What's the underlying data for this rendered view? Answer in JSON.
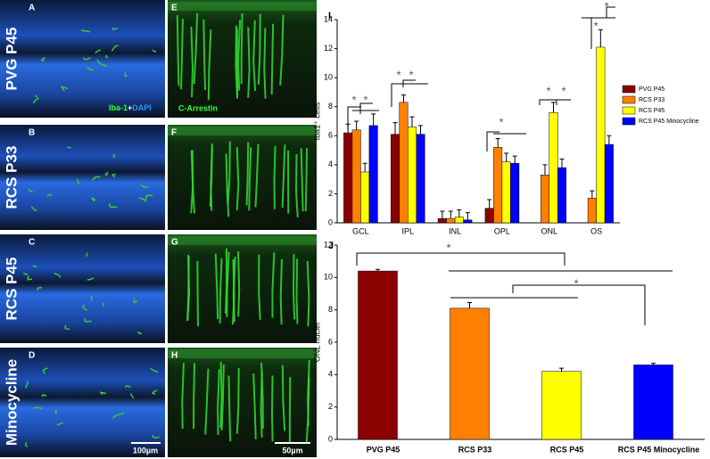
{
  "panels": {
    "rows": [
      "PVG P45",
      "RCS P33",
      "RCS P45",
      "Minocycline"
    ],
    "letters": [
      "A",
      "B",
      "C",
      "D",
      "E",
      "F",
      "G",
      "H"
    ],
    "stain_left": [
      "Iba-1",
      "+",
      "DAPI"
    ],
    "stain_right": "C-Arrestin",
    "scale_left": "100µm",
    "scale_right": "50µm"
  },
  "chart_data": [
    {
      "type": "bar",
      "panel": "I",
      "ylabel": "Iba1⁺ cells",
      "categories": [
        "GCL",
        "IPL",
        "INL",
        "OPL",
        "ONL",
        "OS"
      ],
      "series": [
        {
          "name": "PVG P45",
          "color": "#8b0000",
          "values": [
            6.2,
            6.1,
            0.3,
            1.0,
            0,
            0
          ],
          "errors": [
            0.6,
            0.8,
            0.5,
            0.6,
            0,
            0
          ]
        },
        {
          "name": "RCS P33",
          "color": "#ff7f00",
          "values": [
            6.4,
            8.3,
            0.3,
            5.2,
            3.3,
            1.7
          ],
          "errors": [
            0.6,
            0.5,
            0.5,
            0.6,
            0.7,
            0.5
          ]
        },
        {
          "name": "RCS P45",
          "color": "#ffff00",
          "values": [
            3.5,
            6.6,
            0.4,
            4.2,
            7.6,
            12.1
          ],
          "errors": [
            0.6,
            0.7,
            0.5,
            0.6,
            0.7,
            1.2
          ]
        },
        {
          "name": "RCS P45 Minocycline",
          "color": "#0000ff",
          "values": [
            6.7,
            6.1,
            0.2,
            4.1,
            3.8,
            5.4
          ],
          "errors": [
            0.8,
            0.6,
            0.5,
            0.5,
            0.6,
            0.6
          ]
        }
      ],
      "ylim": [
        0,
        14
      ],
      "yticks": [
        0,
        2,
        4,
        6,
        8,
        10,
        12,
        14
      ],
      "annotations": [
        "*",
        "*",
        "*",
        "*",
        "*",
        "*",
        "*",
        "*",
        "*"
      ]
    },
    {
      "type": "bar",
      "panel": "J",
      "ylabel": "ONL nuclei",
      "categories": [
        "PVG P45",
        "RCS P33",
        "RCS P45",
        "RCS P45 Minocycline"
      ],
      "values": [
        10.4,
        8.1,
        4.2,
        4.6
      ],
      "errors": [
        0.1,
        0.35,
        0.2,
        0.1
      ],
      "colors": [
        "#8b0000",
        "#ff7f00",
        "#ffff00",
        "#0000ff"
      ],
      "ylim": [
        0,
        12
      ],
      "yticks": [
        0,
        2,
        4,
        6,
        8,
        10,
        12
      ],
      "annotations": [
        "*",
        "*"
      ]
    }
  ]
}
